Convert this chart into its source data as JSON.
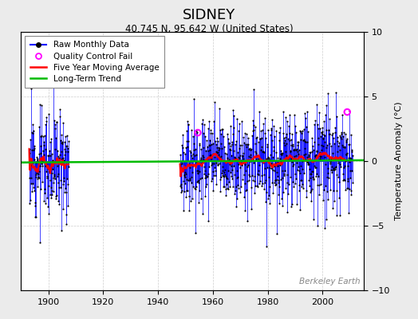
{
  "title": "SIDNEY",
  "subtitle": "40.745 N, 95.642 W (United States)",
  "ylabel": "Temperature Anomaly (°C)",
  "watermark": "Berkeley Earth",
  "xmin": 1890,
  "xmax": 2015,
  "ymin": -10,
  "ymax": 10,
  "yticks": [
    -10,
    -5,
    0,
    5,
    10
  ],
  "xticks": [
    1900,
    1920,
    1940,
    1960,
    1980,
    2000
  ],
  "data_start": 1893.0,
  "data_end": 2011.0,
  "gap_start": 1907.5,
  "gap_end": 1948.0,
  "raw_color": "#0000ff",
  "dot_color": "#000000",
  "qc_color": "#ff00ff",
  "moving_avg_color": "#ff0000",
  "trend_color": "#00bb00",
  "background_color": "#ebebeb",
  "plot_bg_color": "#ffffff",
  "grid_color": "#cccccc",
  "title_fontsize": 13,
  "subtitle_fontsize": 8.5,
  "ylabel_fontsize": 8,
  "legend_fontsize": 7.5,
  "tick_fontsize": 8,
  "watermark_fontsize": 7.5,
  "qc_points": [
    [
      1954.5,
      2.2
    ],
    [
      2009.0,
      3.8
    ]
  ],
  "noise_early": 2.0,
  "noise_main": 1.8,
  "seed": 12
}
